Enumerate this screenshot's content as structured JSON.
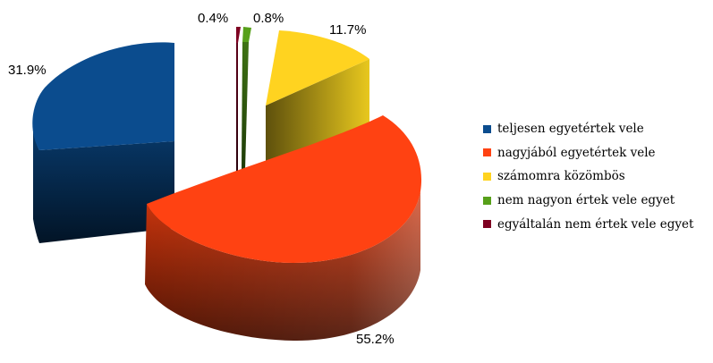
{
  "chart_data": {
    "type": "pie",
    "style": "3d-exploded",
    "title": "",
    "legend_position": "right",
    "slices": [
      {
        "name": "teljesen egyetértek vele",
        "value": 31.9,
        "label": "31.9%",
        "color": "#0B4C8E"
      },
      {
        "name": "nagyjából egyetértek vele",
        "value": 55.2,
        "label": "55.2%",
        "color": "#FF4212"
      },
      {
        "name": "számomra közömbös",
        "value": 11.7,
        "label": "11.7%",
        "color": "#FFD320"
      },
      {
        "name": "nem nagyon értek vele egyet",
        "value": 0.8,
        "label": "0.8%",
        "color": "#57A01A"
      },
      {
        "name": "egyáltalán nem értek vele egyet",
        "value": 0.4,
        "label": "0.4%",
        "color": "#7E0021"
      }
    ]
  }
}
